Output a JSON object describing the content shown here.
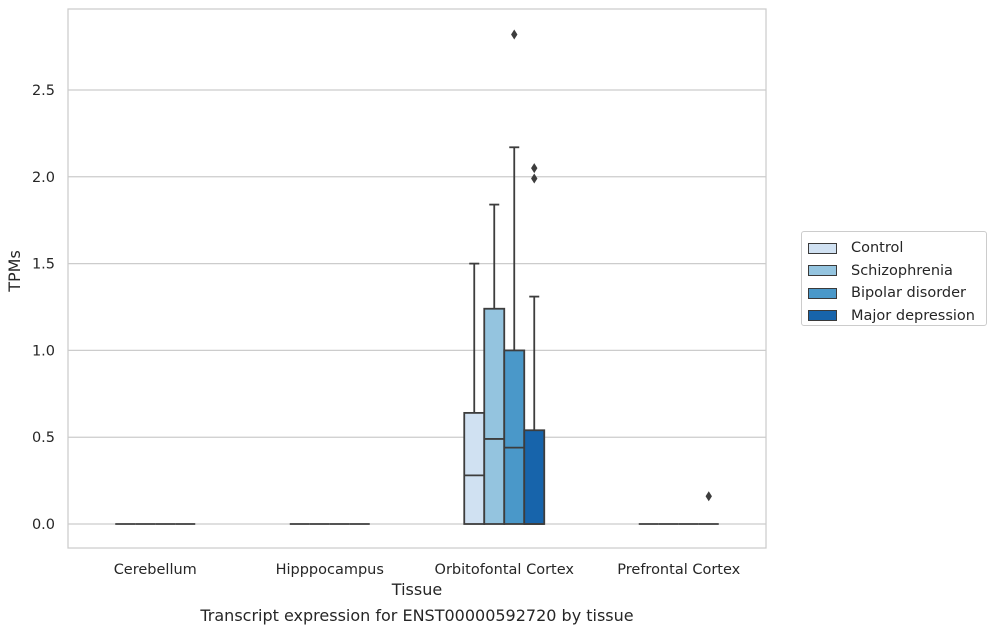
{
  "caption": "Transcript expression for ENST00000592720 by tissue",
  "chart_data": {
    "type": "box",
    "xlabel": "Tissue",
    "ylabel": "TPMs",
    "ylim": [
      -0.14,
      2.96
    ],
    "yticks": [
      0.0,
      0.5,
      1.0,
      1.5,
      2.0,
      2.5
    ],
    "ytick_labels": [
      "0.0",
      "0.5",
      "1.0",
      "1.5",
      "2.0",
      "2.5"
    ],
    "grid": true,
    "legend_position": "right",
    "categories": [
      "Cerebellum",
      "Hipppocampus",
      "Orbitofontal Cortex",
      "Prefrontal Cortex"
    ],
    "series": [
      {
        "name": "Control",
        "color": "#d0e1f2",
        "boxes": [
          {
            "q1": 0,
            "median": 0,
            "q3": 0,
            "whislo": 0,
            "whishi": 0,
            "fliers": []
          },
          {
            "q1": 0,
            "median": 0,
            "q3": 0,
            "whislo": 0,
            "whishi": 0,
            "fliers": []
          },
          {
            "q1": 0,
            "median": 0.28,
            "q3": 0.64,
            "whislo": 0,
            "whishi": 1.5,
            "fliers": []
          },
          {
            "q1": 0,
            "median": 0,
            "q3": 0,
            "whislo": 0,
            "whishi": 0,
            "fliers": []
          }
        ]
      },
      {
        "name": "Schizophrenia",
        "color": "#94c4df",
        "boxes": [
          {
            "q1": 0,
            "median": 0,
            "q3": 0,
            "whislo": 0,
            "whishi": 0,
            "fliers": []
          },
          {
            "q1": 0,
            "median": 0,
            "q3": 0,
            "whislo": 0,
            "whishi": 0,
            "fliers": []
          },
          {
            "q1": 0,
            "median": 0.49,
            "q3": 1.24,
            "whislo": 0,
            "whishi": 1.84,
            "fliers": []
          },
          {
            "q1": 0,
            "median": 0,
            "q3": 0,
            "whislo": 0,
            "whishi": 0,
            "fliers": []
          }
        ]
      },
      {
        "name": "Bipolar disorder",
        "color": "#4a98c9",
        "boxes": [
          {
            "q1": 0,
            "median": 0,
            "q3": 0,
            "whislo": 0,
            "whishi": 0,
            "fliers": []
          },
          {
            "q1": 0,
            "median": 0,
            "q3": 0,
            "whislo": 0,
            "whishi": 0,
            "fliers": []
          },
          {
            "q1": 0,
            "median": 0.44,
            "q3": 1.0,
            "whislo": 0,
            "whishi": 2.17,
            "fliers": [
              2.82
            ]
          },
          {
            "q1": 0,
            "median": 0,
            "q3": 0,
            "whislo": 0,
            "whishi": 0,
            "fliers": []
          }
        ]
      },
      {
        "name": "Major depression",
        "color": "#1764ab",
        "boxes": [
          {
            "q1": 0,
            "median": 0,
            "q3": 0,
            "whislo": 0,
            "whishi": 0,
            "fliers": []
          },
          {
            "q1": 0,
            "median": 0,
            "q3": 0,
            "whislo": 0,
            "whishi": 0,
            "fliers": []
          },
          {
            "q1": 0,
            "median": 0,
            "q3": 0.54,
            "whislo": 0,
            "whishi": 1.31,
            "fliers": [
              1.99,
              2.05
            ]
          },
          {
            "q1": 0,
            "median": 0,
            "q3": 0,
            "whislo": 0,
            "whishi": 0,
            "fliers": [
              0.16
            ]
          }
        ]
      }
    ]
  }
}
